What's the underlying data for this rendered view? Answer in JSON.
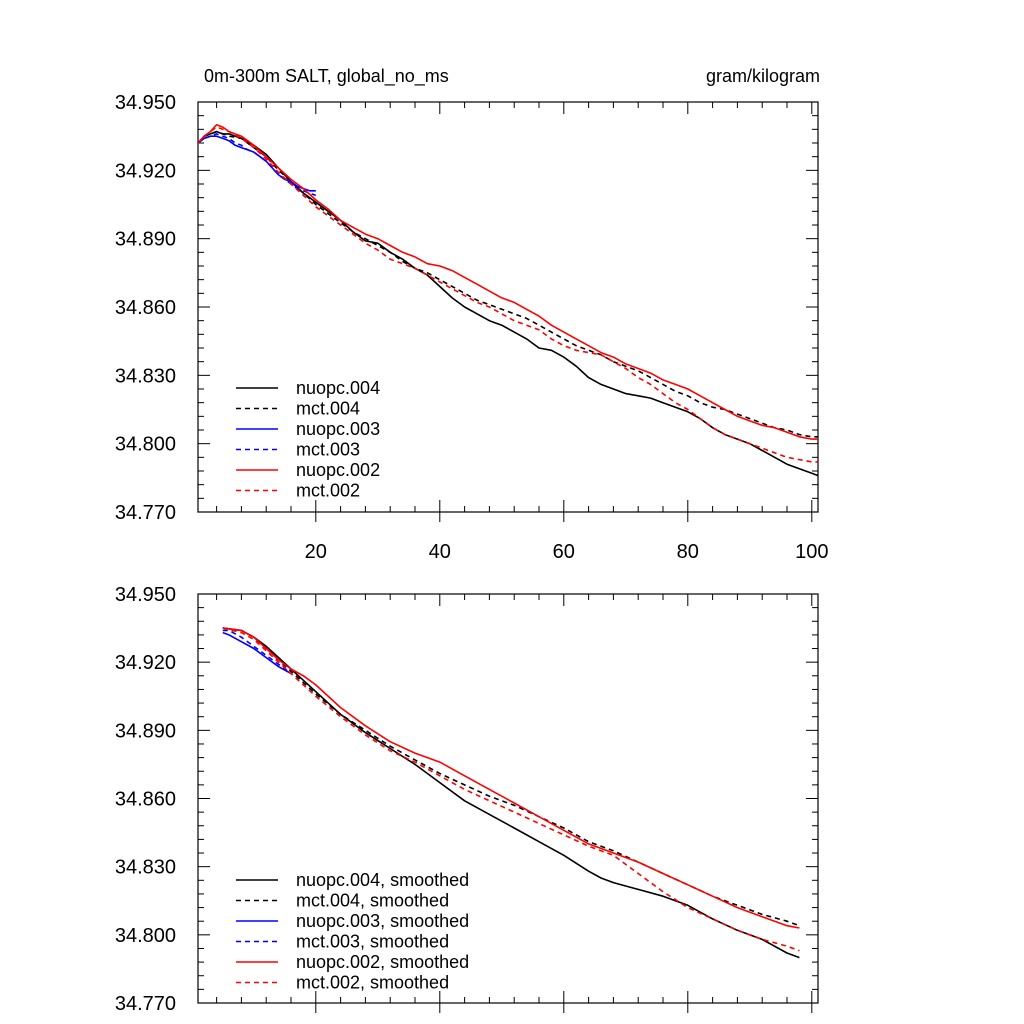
{
  "figure": {
    "title_left": "0m-300m SALT, global_no_ms",
    "title_right": "gram/kilogram"
  },
  "chart_data": [
    {
      "type": "line",
      "title": "0m-300m SALT, global_no_ms",
      "units": "gram/kilogram",
      "xlim": [
        1,
        101
      ],
      "ylim": [
        34.77,
        34.95
      ],
      "xticks": [
        20,
        40,
        60,
        80,
        100
      ],
      "yticks": [
        34.77,
        34.8,
        34.83,
        34.86,
        34.89,
        34.92,
        34.95
      ],
      "yticklabels": [
        "34.770",
        "34.800",
        "34.830",
        "34.860",
        "34.890",
        "34.920",
        "34.950"
      ],
      "xticklabels_shown": true,
      "legend": "bottom-left",
      "grid": false,
      "series": [
        {
          "name": "nuopc.004",
          "color": "#000000",
          "dash": false,
          "x": [
            1,
            2,
            3,
            4,
            5,
            6,
            8,
            10,
            12,
            14,
            16,
            18,
            20,
            22,
            24,
            26,
            28,
            30,
            32,
            34,
            36,
            38,
            40,
            42,
            44,
            46,
            48,
            50,
            52,
            54,
            56,
            58,
            60,
            62,
            64,
            66,
            68,
            70,
            72,
            74,
            76,
            78,
            80,
            82,
            84,
            86,
            88,
            90,
            92,
            94,
            96,
            98,
            100,
            101
          ],
          "y": [
            34.932,
            34.935,
            34.936,
            34.937,
            34.936,
            34.936,
            34.934,
            34.931,
            34.927,
            34.921,
            34.915,
            34.91,
            34.906,
            34.902,
            34.898,
            34.893,
            34.889,
            34.888,
            34.884,
            34.881,
            34.877,
            34.874,
            34.869,
            34.864,
            34.86,
            34.857,
            34.854,
            34.852,
            34.849,
            34.846,
            34.842,
            34.841,
            34.838,
            34.834,
            34.829,
            34.826,
            34.824,
            34.822,
            34.821,
            34.82,
            34.818,
            34.816,
            34.814,
            34.811,
            34.807,
            34.804,
            34.802,
            34.8,
            34.797,
            34.794,
            34.791,
            34.789,
            34.787,
            34.786
          ]
        },
        {
          "name": "mct.004",
          "color": "#000000",
          "dash": true,
          "x": [
            1,
            2,
            3,
            4,
            5,
            6,
            8,
            10,
            12,
            14,
            16,
            18,
            20,
            22,
            24,
            26,
            28,
            30,
            32,
            34,
            36,
            38,
            40,
            42,
            44,
            46,
            48,
            50,
            52,
            54,
            56,
            58,
            60,
            62,
            64,
            66,
            68,
            70,
            72,
            74,
            76,
            78,
            80,
            82,
            84,
            86,
            88,
            90,
            92,
            94,
            96,
            98,
            100,
            101
          ],
          "y": [
            34.932,
            34.935,
            34.936,
            34.937,
            34.936,
            34.935,
            34.934,
            34.93,
            34.926,
            34.92,
            34.915,
            34.91,
            34.905,
            34.901,
            34.897,
            34.893,
            34.89,
            34.887,
            34.884,
            34.88,
            34.877,
            34.875,
            34.872,
            34.869,
            34.866,
            34.863,
            34.861,
            34.859,
            34.857,
            34.855,
            34.852,
            34.849,
            34.846,
            34.843,
            34.841,
            34.839,
            34.836,
            34.834,
            34.832,
            34.829,
            34.826,
            34.823,
            34.821,
            34.818,
            34.816,
            34.815,
            34.813,
            34.811,
            34.809,
            34.807,
            34.806,
            34.804,
            34.803,
            34.803
          ]
        },
        {
          "name": "nuopc.003",
          "color": "#0000ff",
          "dash": false,
          "x": [
            1,
            2,
            3,
            4,
            5,
            6,
            7,
            8,
            9,
            10,
            11,
            12,
            13,
            14,
            15,
            16,
            17,
            18,
            19,
            20
          ],
          "y": [
            34.932,
            34.934,
            34.935,
            34.935,
            34.934,
            34.933,
            34.931,
            34.93,
            34.929,
            34.928,
            34.926,
            34.924,
            34.921,
            34.918,
            34.916,
            34.915,
            34.913,
            34.912,
            34.911,
            34.911
          ]
        },
        {
          "name": "mct.003",
          "color": "#0000ff",
          "dash": true,
          "x": [
            1,
            2,
            3,
            4,
            5,
            6,
            7,
            8,
            9,
            10,
            11,
            12,
            13,
            14,
            15,
            16,
            17,
            18,
            19,
            20
          ],
          "y": [
            34.932,
            34.934,
            34.935,
            34.936,
            34.935,
            34.934,
            34.932,
            34.931,
            34.929,
            34.928,
            34.926,
            34.924,
            34.921,
            34.918,
            34.916,
            34.914,
            34.912,
            34.911,
            34.91,
            34.909
          ]
        },
        {
          "name": "nuopc.002",
          "color": "#ff0000",
          "dash": false,
          "x": [
            1,
            2,
            3,
            4,
            5,
            6,
            8,
            10,
            12,
            14,
            16,
            18,
            20,
            22,
            24,
            26,
            28,
            30,
            32,
            34,
            36,
            38,
            40,
            42,
            44,
            46,
            48,
            50,
            52,
            54,
            56,
            58,
            60,
            62,
            64,
            66,
            68,
            70,
            72,
            74,
            76,
            78,
            80,
            82,
            84,
            86,
            88,
            90,
            92,
            94,
            96,
            98,
            100,
            101
          ],
          "y": [
            34.932,
            34.935,
            34.937,
            34.94,
            34.939,
            34.937,
            34.935,
            34.931,
            34.926,
            34.921,
            34.916,
            34.912,
            34.907,
            34.903,
            34.898,
            34.895,
            34.892,
            34.89,
            34.887,
            34.884,
            34.882,
            34.879,
            34.878,
            34.876,
            34.873,
            34.87,
            34.867,
            34.864,
            34.862,
            34.859,
            34.856,
            34.852,
            34.849,
            34.846,
            34.843,
            34.84,
            34.838,
            34.835,
            34.833,
            34.831,
            34.828,
            34.826,
            34.824,
            34.821,
            34.818,
            34.815,
            34.812,
            34.81,
            34.808,
            34.807,
            34.805,
            34.803,
            34.802,
            34.802
          ]
        },
        {
          "name": "mct.002",
          "color": "#ff0000",
          "dash": true,
          "x": [
            1,
            2,
            3,
            4,
            5,
            6,
            8,
            10,
            12,
            14,
            16,
            18,
            20,
            22,
            24,
            26,
            28,
            30,
            32,
            34,
            36,
            38,
            40,
            42,
            44,
            46,
            48,
            50,
            52,
            54,
            56,
            58,
            60,
            62,
            64,
            66,
            68,
            70,
            72,
            74,
            76,
            78,
            80,
            82,
            84,
            86,
            88,
            90,
            92,
            94,
            96,
            98,
            100,
            101
          ],
          "y": [
            34.932,
            34.935,
            34.937,
            34.939,
            34.938,
            34.937,
            34.934,
            34.93,
            34.925,
            34.919,
            34.914,
            34.909,
            34.904,
            34.9,
            34.896,
            34.892,
            34.888,
            34.885,
            34.881,
            34.879,
            34.877,
            34.874,
            34.871,
            34.868,
            34.865,
            34.862,
            34.86,
            34.857,
            34.854,
            34.852,
            34.85,
            34.846,
            34.843,
            34.841,
            34.84,
            34.839,
            34.836,
            34.833,
            34.829,
            34.826,
            34.822,
            34.818,
            34.815,
            34.811,
            34.807,
            34.804,
            34.802,
            34.8,
            34.798,
            34.796,
            34.794,
            34.793,
            34.792,
            34.792
          ]
        }
      ]
    },
    {
      "type": "line",
      "xlim": [
        1,
        101
      ],
      "ylim": [
        34.77,
        34.95
      ],
      "xticks": [
        20,
        40,
        60,
        80,
        100
      ],
      "yticks": [
        34.77,
        34.8,
        34.83,
        34.86,
        34.89,
        34.92,
        34.95
      ],
      "yticklabels": [
        "34.770",
        "34.800",
        "34.830",
        "34.860",
        "34.890",
        "34.920",
        "34.950"
      ],
      "xticklabels_shown": false,
      "legend": "bottom-left",
      "grid": false,
      "series": [
        {
          "name": "nuopc.004, smoothed",
          "color": "#000000",
          "dash": false,
          "x": [
            5,
            8,
            10,
            12,
            14,
            16,
            18,
            20,
            24,
            28,
            32,
            36,
            40,
            44,
            48,
            52,
            56,
            60,
            64,
            66,
            68,
            72,
            76,
            80,
            84,
            88,
            92,
            96,
            98
          ],
          "y": [
            34.935,
            34.934,
            34.931,
            34.927,
            34.922,
            34.917,
            34.912,
            34.907,
            34.897,
            34.889,
            34.882,
            34.875,
            34.867,
            34.859,
            34.853,
            34.847,
            34.841,
            34.835,
            34.828,
            34.825,
            34.823,
            34.82,
            34.817,
            34.813,
            34.807,
            34.802,
            34.798,
            34.792,
            34.79
          ]
        },
        {
          "name": "mct.004, smoothed",
          "color": "#000000",
          "dash": true,
          "x": [
            5,
            8,
            10,
            12,
            14,
            16,
            18,
            20,
            24,
            28,
            32,
            36,
            40,
            44,
            48,
            52,
            56,
            60,
            64,
            68,
            72,
            76,
            80,
            84,
            88,
            92,
            96,
            98
          ],
          "y": [
            34.935,
            34.934,
            34.931,
            34.926,
            34.921,
            34.916,
            34.911,
            34.906,
            34.897,
            34.89,
            34.883,
            34.877,
            34.871,
            34.866,
            34.861,
            34.857,
            34.852,
            34.847,
            34.841,
            34.837,
            34.832,
            34.827,
            34.822,
            34.817,
            34.813,
            34.809,
            34.806,
            34.804
          ]
        },
        {
          "name": "nuopc.003, smoothed",
          "color": "#0000ff",
          "dash": false,
          "x": [
            5,
            6,
            8,
            10,
            12,
            14,
            16
          ],
          "y": [
            34.933,
            34.932,
            34.929,
            34.926,
            34.922,
            34.918,
            34.915
          ]
        },
        {
          "name": "mct.003, smoothed",
          "color": "#0000ff",
          "dash": true,
          "x": [
            5,
            6,
            8,
            10,
            12,
            14,
            16
          ],
          "y": [
            34.934,
            34.934,
            34.931,
            34.927,
            34.923,
            34.919,
            34.915
          ]
        },
        {
          "name": "nuopc.002, smoothed",
          "color": "#ff0000",
          "dash": false,
          "x": [
            5,
            8,
            10,
            12,
            14,
            16,
            18,
            20,
            24,
            28,
            32,
            36,
            40,
            44,
            48,
            52,
            56,
            60,
            64,
            68,
            72,
            76,
            80,
            84,
            88,
            92,
            96,
            98
          ],
          "y": [
            34.935,
            34.934,
            34.931,
            34.926,
            34.921,
            34.917,
            34.914,
            34.91,
            34.9,
            34.892,
            34.885,
            34.88,
            34.876,
            34.87,
            34.864,
            34.858,
            34.852,
            34.846,
            34.84,
            34.836,
            34.832,
            34.827,
            34.822,
            34.817,
            34.812,
            34.808,
            34.804,
            34.803
          ]
        },
        {
          "name": "mct.002, smoothed",
          "color": "#ff0000",
          "dash": true,
          "x": [
            5,
            8,
            10,
            12,
            14,
            16,
            18,
            20,
            24,
            28,
            32,
            36,
            40,
            44,
            48,
            52,
            56,
            60,
            64,
            68,
            72,
            76,
            80,
            84,
            88,
            92,
            96,
            98
          ],
          "y": [
            34.935,
            34.933,
            34.93,
            34.925,
            34.92,
            34.915,
            34.91,
            34.905,
            34.896,
            34.888,
            34.881,
            34.876,
            34.87,
            34.864,
            34.859,
            34.854,
            34.849,
            34.844,
            34.839,
            34.835,
            34.827,
            34.819,
            34.812,
            34.807,
            34.802,
            34.798,
            34.795,
            34.793
          ]
        }
      ]
    }
  ]
}
